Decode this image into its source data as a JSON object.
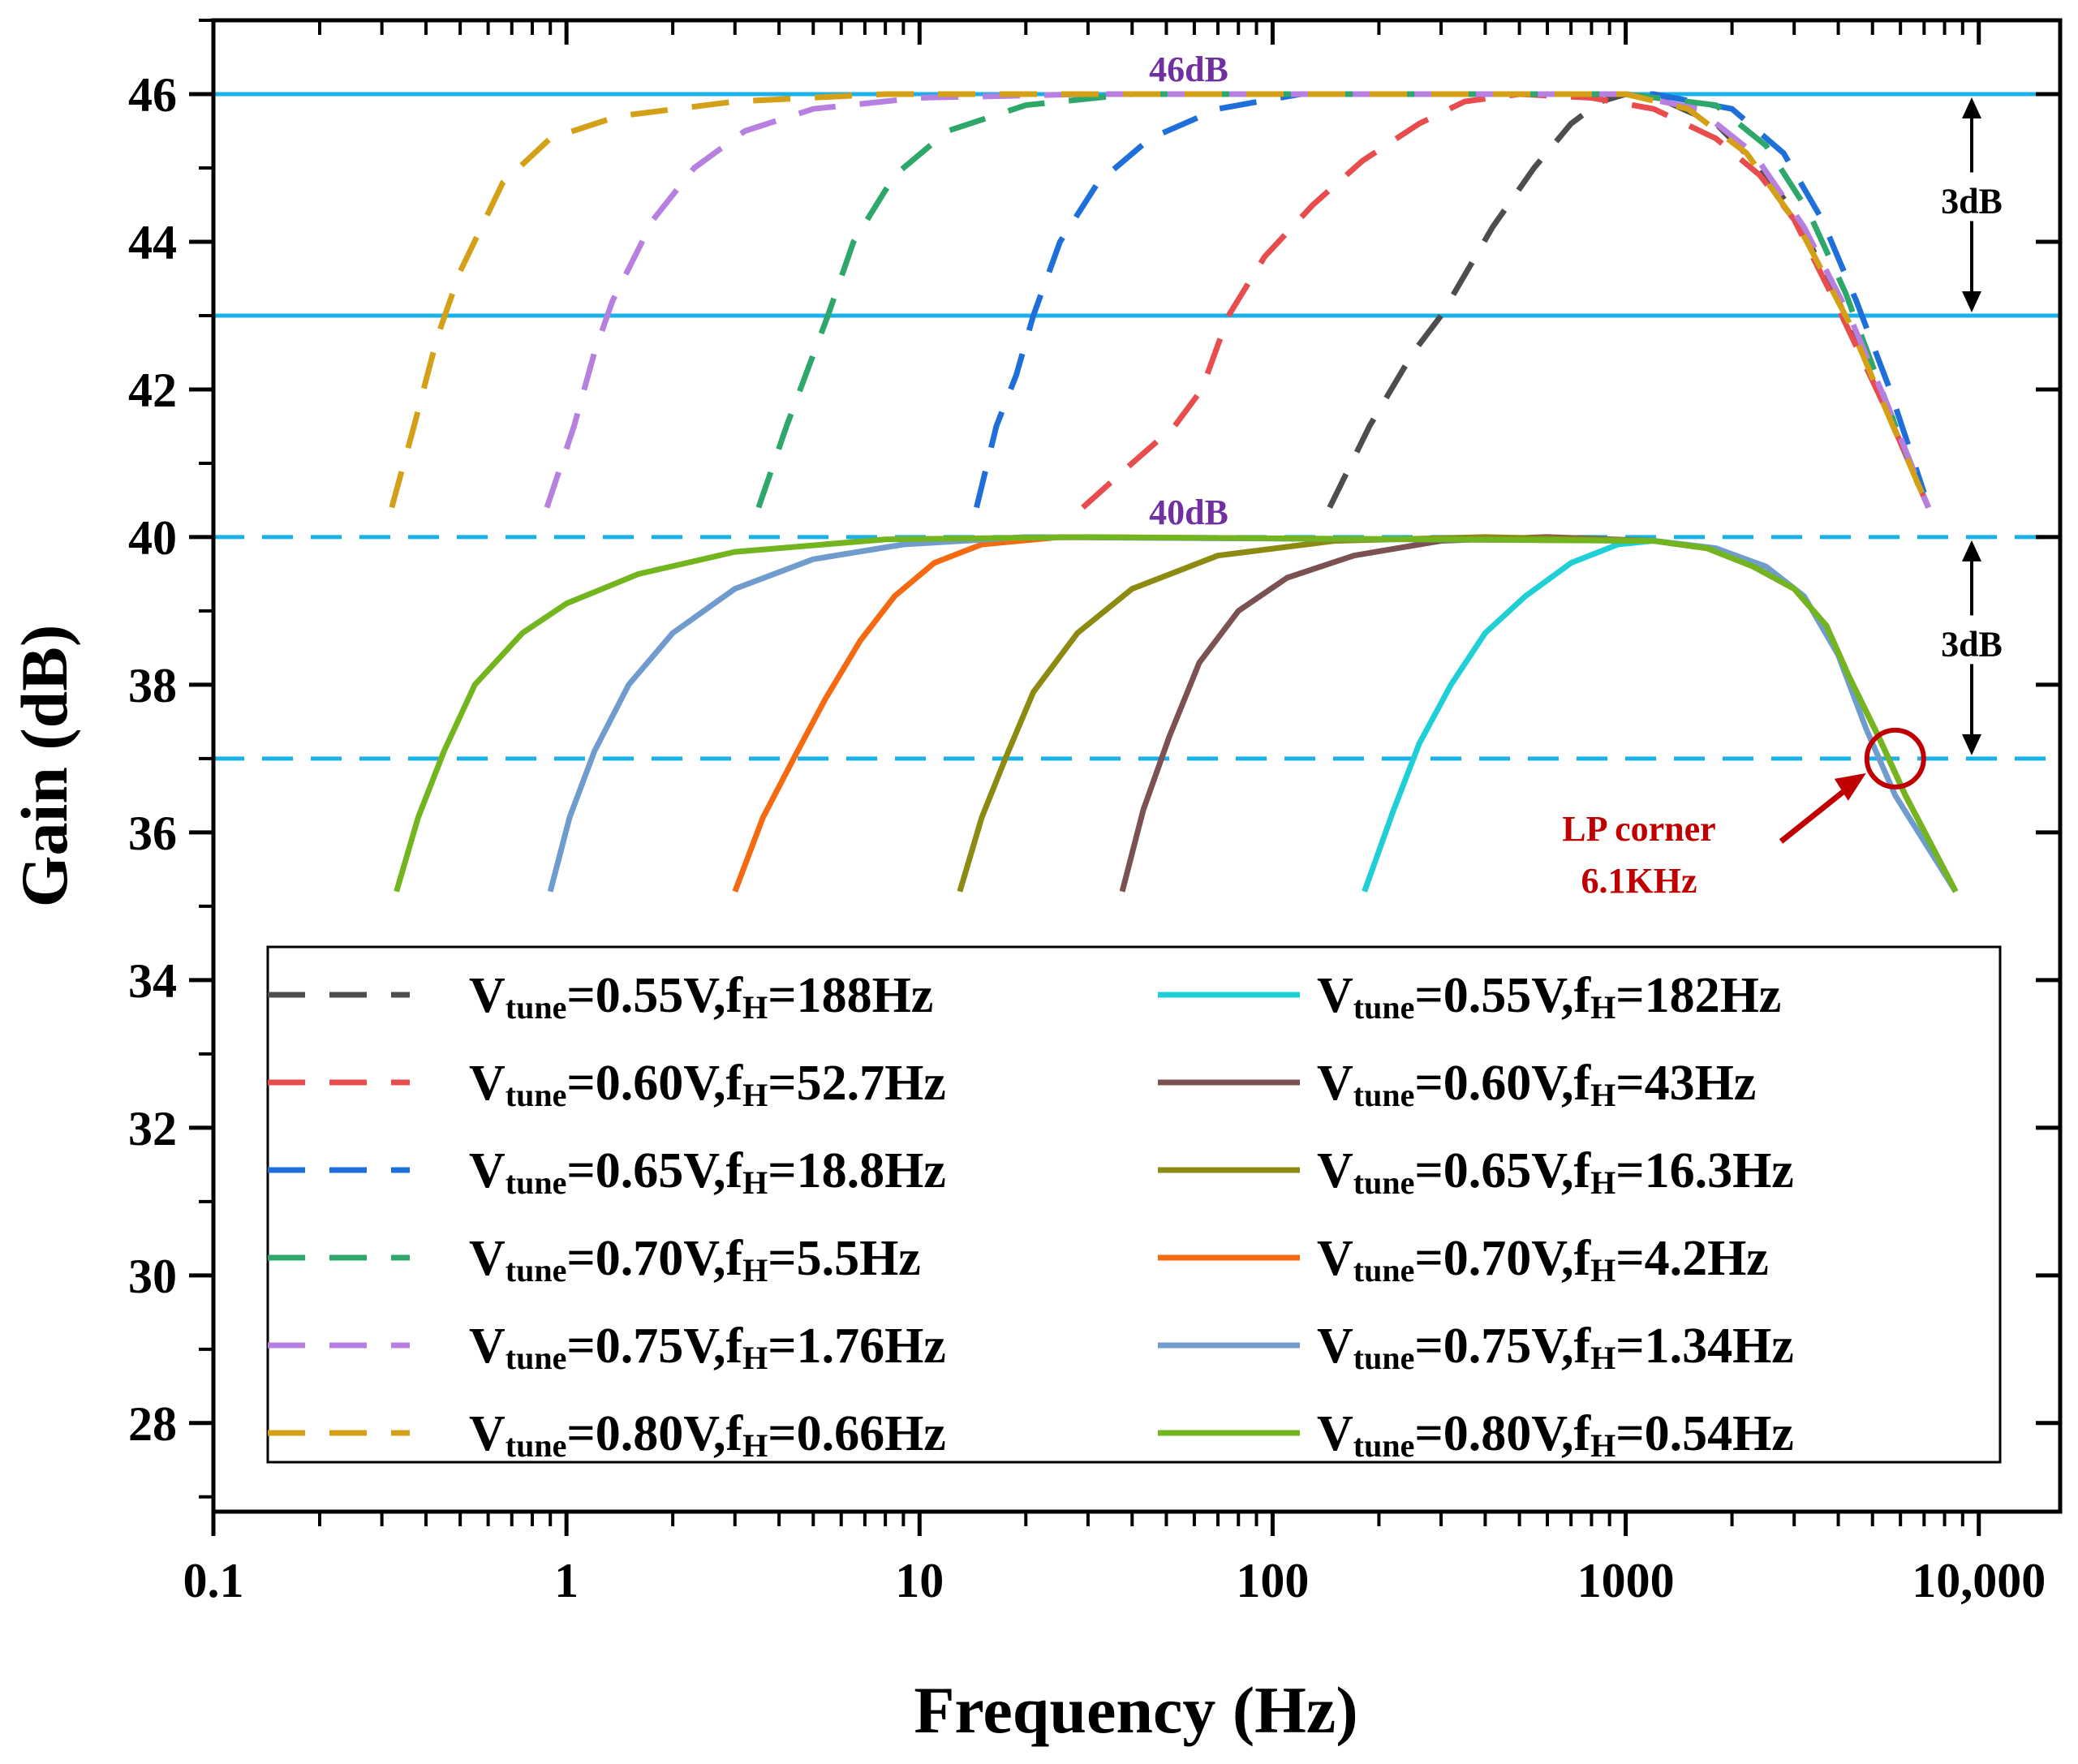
{
  "chart_data": {
    "type": "line",
    "xlabel": "Frequency (Hz)",
    "ylabel": "Gain (dB)",
    "xscale": "log",
    "xlim": [
      0.1,
      17000
    ],
    "ylim": [
      26.8,
      47
    ],
    "xticks": [
      {
        "value": 0.1,
        "label": "0.1"
      },
      {
        "value": 1,
        "label": "1"
      },
      {
        "value": 10,
        "label": "10"
      },
      {
        "value": 100,
        "label": "100"
      },
      {
        "value": 1000,
        "label": "1000"
      },
      {
        "value": 10000,
        "label": "10,000"
      }
    ],
    "yticks": [
      {
        "value": 28,
        "label": "28"
      },
      {
        "value": 30,
        "label": "30"
      },
      {
        "value": 32,
        "label": "32"
      },
      {
        "value": 34,
        "label": "34"
      },
      {
        "value": 36,
        "label": "36"
      },
      {
        "value": 38,
        "label": "38"
      },
      {
        "value": 40,
        "label": "40"
      },
      {
        "value": 42,
        "label": "42"
      },
      {
        "value": 44,
        "label": "44"
      },
      {
        "value": 46,
        "label": "46"
      }
    ],
    "reference_lines": [
      {
        "y": 46,
        "style": "solid",
        "color": "#1ab0e8",
        "label": "46dB"
      },
      {
        "y": 43,
        "style": "solid",
        "color": "#1ab0e8",
        "label": ""
      },
      {
        "y": 40,
        "style": "dashed",
        "color": "#1ab0e8",
        "label": "40dB"
      },
      {
        "y": 37,
        "style": "dashed",
        "color": "#1ab0e8",
        "label": ""
      }
    ],
    "ref_label_color": "#7030a0",
    "annotations": {
      "upper_span": "3dB",
      "lower_span": "3dB",
      "lp_corner_line1": "LP corner",
      "lp_corner_line2": "6.1KHz",
      "lp_corner_color": "#c00000",
      "lp_corner_point": {
        "x": 5800,
        "y": 37
      }
    },
    "series": [
      {
        "name": "Vtune=0.55V,fH=188Hz",
        "vt": "0.55V",
        "fh": "188Hz",
        "style": "dashed",
        "color": "#4d4d4d",
        "points": [
          [
            145,
            40.4
          ],
          [
            188,
            41.5
          ],
          [
            250,
            42.5
          ],
          [
            300,
            43
          ],
          [
            420,
            44.2
          ],
          [
            550,
            45.0
          ],
          [
            700,
            45.6
          ],
          [
            850,
            45.9
          ],
          [
            1000,
            46
          ],
          [
            1300,
            45.9
          ],
          [
            1800,
            45.6
          ],
          [
            2400,
            45.0
          ],
          [
            3000,
            44.4
          ],
          [
            4000,
            43.2
          ],
          [
            5500,
            41.8
          ],
          [
            7200,
            40.4
          ]
        ]
      },
      {
        "name": "Vtune=0.60V,fH=52.7Hz",
        "vt": "0.60V",
        "fh": "52.7Hz",
        "style": "dashed",
        "color": "#e84c4c",
        "points": [
          [
            29,
            40.4
          ],
          [
            40,
            41
          ],
          [
            52.7,
            41.5
          ],
          [
            63,
            42
          ],
          [
            75,
            43
          ],
          [
            95,
            43.8
          ],
          [
            130,
            44.5
          ],
          [
            180,
            45.1
          ],
          [
            260,
            45.6
          ],
          [
            350,
            45.9
          ],
          [
            500,
            46
          ],
          [
            800,
            45.95
          ],
          [
            1200,
            45.8
          ],
          [
            1800,
            45.4
          ],
          [
            2400,
            44.9
          ],
          [
            3000,
            44.3
          ],
          [
            4000,
            43.1
          ],
          [
            5500,
            41.7
          ],
          [
            7200,
            40.4
          ]
        ]
      },
      {
        "name": "Vtune=0.65V,fH=18.8Hz",
        "vt": "0.65V",
        "fh": "18.8Hz",
        "style": "dashed",
        "color": "#1e6fd9",
        "points": [
          [
            14.5,
            40.4
          ],
          [
            16.5,
            41.5
          ],
          [
            18.8,
            42.2
          ],
          [
            21,
            43
          ],
          [
            25,
            44
          ],
          [
            32,
            44.8
          ],
          [
            45,
            45.4
          ],
          [
            70,
            45.8
          ],
          [
            120,
            46
          ],
          [
            400,
            46
          ],
          [
            1200,
            46
          ],
          [
            2000,
            45.8
          ],
          [
            2800,
            45.2
          ],
          [
            3600,
            44.3
          ],
          [
            4500,
            43.2
          ],
          [
            5600,
            42
          ],
          [
            7000,
            40.6
          ]
        ]
      },
      {
        "name": "Vtune=0.70V,fH=5.5Hz",
        "vt": "0.70V",
        "fh": "5.5Hz",
        "style": "dashed",
        "color": "#2ea86a",
        "points": [
          [
            3.5,
            40.4
          ],
          [
            4.2,
            41.5
          ],
          [
            5.5,
            43
          ],
          [
            6.5,
            44
          ],
          [
            8.5,
            44.9
          ],
          [
            12,
            45.5
          ],
          [
            20,
            45.85
          ],
          [
            40,
            46
          ],
          [
            200,
            46
          ],
          [
            1000,
            46
          ],
          [
            1800,
            45.85
          ],
          [
            2500,
            45.3
          ],
          [
            3300,
            44.4
          ],
          [
            4200,
            43.3
          ],
          [
            5300,
            42
          ],
          [
            7000,
            40.5
          ]
        ]
      },
      {
        "name": "Vtune=0.75V,fH=1.76Hz",
        "vt": "0.75V",
        "fh": "1.76Hz",
        "style": "dashed",
        "color": "#b77fdf",
        "points": [
          [
            0.88,
            40.4
          ],
          [
            1.05,
            41.5
          ],
          [
            1.2,
            42.5
          ],
          [
            1.35,
            43.2
          ],
          [
            1.76,
            44.3
          ],
          [
            2.3,
            45.0
          ],
          [
            3.2,
            45.5
          ],
          [
            5,
            45.8
          ],
          [
            10,
            45.95
          ],
          [
            30,
            46
          ],
          [
            1000,
            46
          ],
          [
            1600,
            45.8
          ],
          [
            2300,
            45.2
          ],
          [
            3200,
            44.2
          ],
          [
            4300,
            43
          ],
          [
            5500,
            41.8
          ],
          [
            7200,
            40.4
          ]
        ]
      },
      {
        "name": "Vtune=0.80V,fH=0.66Hz",
        "vt": "0.80V",
        "fh": "0.66Hz",
        "style": "dashed",
        "color": "#d4a017",
        "points": [
          [
            0.32,
            40.4
          ],
          [
            0.37,
            41.5
          ],
          [
            0.43,
            42.7
          ],
          [
            0.5,
            43.6
          ],
          [
            0.66,
            44.8
          ],
          [
            0.9,
            45.4
          ],
          [
            1.4,
            45.7
          ],
          [
            3,
            45.9
          ],
          [
            8,
            46
          ],
          [
            1000,
            46
          ],
          [
            1500,
            45.8
          ],
          [
            2200,
            45.2
          ],
          [
            3100,
            44.2
          ],
          [
            4300,
            42.9
          ],
          [
            5600,
            41.6
          ],
          [
            7200,
            40.4
          ]
        ]
      },
      {
        "name": "Vtune=0.55V,fH=182Hz",
        "vt": "0.55V",
        "fh": "182Hz",
        "style": "solid",
        "color": "#1ecfd6",
        "points": [
          [
            182,
            35.2
          ],
          [
            220,
            36.3
          ],
          [
            260,
            37.2
          ],
          [
            320,
            38
          ],
          [
            400,
            38.7
          ],
          [
            520,
            39.2
          ],
          [
            700,
            39.65
          ],
          [
            950,
            39.9
          ],
          [
            1200,
            39.95
          ],
          [
            1700,
            39.85
          ],
          [
            2300,
            39.6
          ],
          [
            3000,
            39.3
          ],
          [
            3700,
            38.8
          ],
          [
            4300,
            38.1
          ],
          [
            5200,
            37.3
          ],
          [
            6200,
            36.5
          ],
          [
            8600,
            35.2
          ]
        ]
      },
      {
        "name": "Vtune=0.60V,fH=43Hz",
        "vt": "0.60V",
        "fh": "43Hz",
        "style": "solid",
        "color": "#7b5151",
        "points": [
          [
            37.5,
            35.2
          ],
          [
            43,
            36.3
          ],
          [
            51,
            37.3
          ],
          [
            62,
            38.3
          ],
          [
            80,
            39
          ],
          [
            110,
            39.45
          ],
          [
            170,
            39.75
          ],
          [
            300,
            39.95
          ],
          [
            600,
            40
          ],
          [
            1200,
            39.95
          ],
          [
            1700,
            39.85
          ],
          [
            2300,
            39.6
          ],
          [
            3000,
            39.3
          ],
          [
            3700,
            38.8
          ],
          [
            4300,
            38.1
          ],
          [
            5200,
            37.3
          ],
          [
            6200,
            36.5
          ],
          [
            8600,
            35.2
          ]
        ]
      },
      {
        "name": "Vtune=0.65V,fH=16.3Hz",
        "vt": "0.65V",
        "fh": "16.3Hz",
        "style": "solid",
        "color": "#8c8a10",
        "points": [
          [
            13,
            35.2
          ],
          [
            15,
            36.2
          ],
          [
            17.5,
            37
          ],
          [
            21,
            37.9
          ],
          [
            28,
            38.7
          ],
          [
            40,
            39.3
          ],
          [
            70,
            39.75
          ],
          [
            150,
            39.95
          ],
          [
            400,
            40
          ],
          [
            1200,
            39.95
          ],
          [
            1700,
            39.85
          ],
          [
            2300,
            39.6
          ],
          [
            3000,
            39.3
          ],
          [
            3700,
            38.8
          ],
          [
            4300,
            38.1
          ],
          [
            5200,
            37.3
          ],
          [
            6200,
            36.5
          ],
          [
            8600,
            35.2
          ]
        ]
      },
      {
        "name": "Vtune=0.70V,fH=4.2Hz",
        "vt": "0.70V",
        "fh": "4.2Hz",
        "style": "solid",
        "color": "#f56a10",
        "points": [
          [
            3,
            35.2
          ],
          [
            3.6,
            36.2
          ],
          [
            4.4,
            37
          ],
          [
            5.4,
            37.8
          ],
          [
            6.8,
            38.6
          ],
          [
            8.5,
            39.2
          ],
          [
            11,
            39.65
          ],
          [
            15,
            39.9
          ],
          [
            25,
            40
          ],
          [
            1200,
            39.95
          ],
          [
            1700,
            39.85
          ],
          [
            2300,
            39.6
          ],
          [
            3000,
            39.3
          ],
          [
            3700,
            38.8
          ],
          [
            4300,
            38.1
          ],
          [
            5200,
            37.3
          ],
          [
            6200,
            36.5
          ],
          [
            8600,
            35.2
          ]
        ]
      },
      {
        "name": "Vtune=0.75V,fH=1.34Hz",
        "vt": "0.75V",
        "fh": "1.34Hz",
        "style": "solid",
        "color": "#6f9ccc",
        "points": [
          [
            0.9,
            35.2
          ],
          [
            1.02,
            36.2
          ],
          [
            1.2,
            37.1
          ],
          [
            1.5,
            38
          ],
          [
            2,
            38.7
          ],
          [
            3,
            39.3
          ],
          [
            5,
            39.7
          ],
          [
            9,
            39.9
          ],
          [
            20,
            40
          ],
          [
            1200,
            39.95
          ],
          [
            1800,
            39.85
          ],
          [
            2500,
            39.6
          ],
          [
            3200,
            39.2
          ],
          [
            4000,
            38.4
          ],
          [
            4800,
            37.4
          ],
          [
            5800,
            36.5
          ],
          [
            8600,
            35.2
          ]
        ]
      },
      {
        "name": "Vtune=0.80V,fH=0.54Hz",
        "vt": "0.80V",
        "fh": "0.54Hz",
        "style": "solid",
        "color": "#72b51e",
        "points": [
          [
            0.33,
            35.2
          ],
          [
            0.38,
            36.2
          ],
          [
            0.45,
            37.1
          ],
          [
            0.55,
            38
          ],
          [
            0.75,
            38.7
          ],
          [
            1,
            39.1
          ],
          [
            1.6,
            39.5
          ],
          [
            3,
            39.8
          ],
          [
            8,
            39.97
          ],
          [
            30,
            40
          ],
          [
            1200,
            39.95
          ],
          [
            1700,
            39.85
          ],
          [
            2300,
            39.6
          ],
          [
            3000,
            39.3
          ],
          [
            3700,
            38.8
          ],
          [
            4300,
            38.1
          ],
          [
            5200,
            37.3
          ],
          [
            6200,
            36.5
          ],
          [
            8600,
            35.2
          ]
        ]
      }
    ]
  }
}
